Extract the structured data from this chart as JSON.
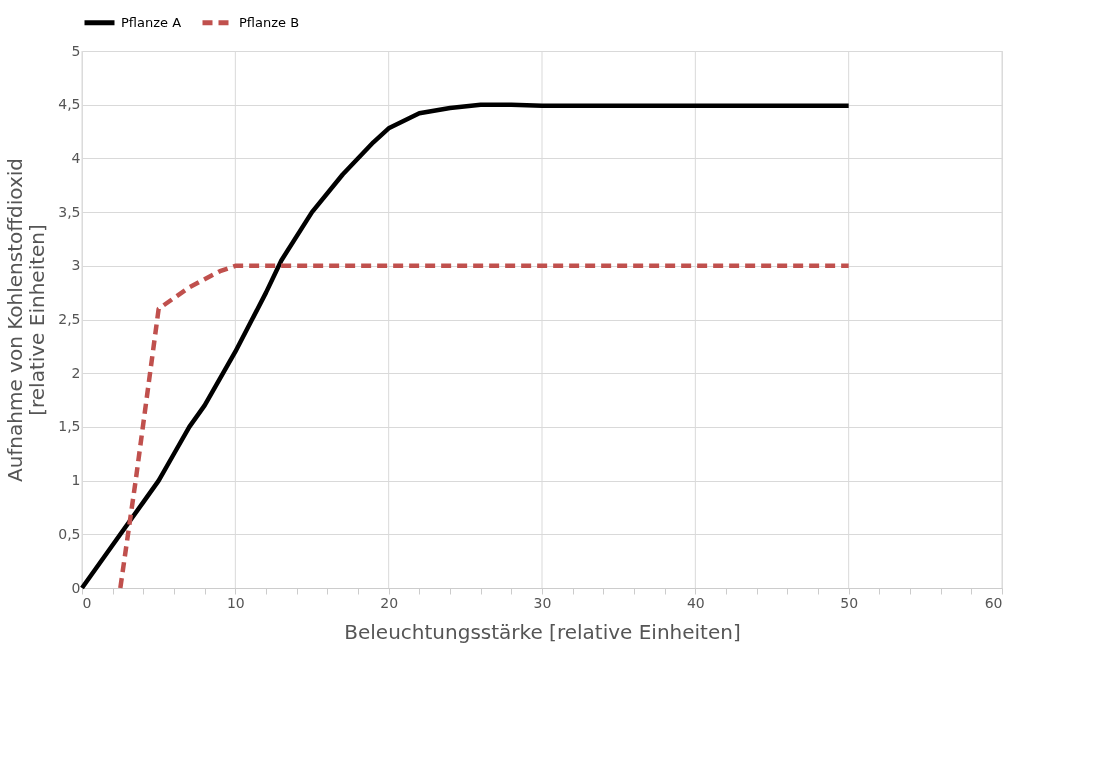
{
  "chart_data": {
    "type": "line",
    "xlabel": "Beleuchtungsstärke [relative Einheiten]",
    "ylabel": "Aufnahme von Kohlenstoffdioxid [relative Einheiten]",
    "xlim": [
      0,
      60
    ],
    "ylim": [
      0,
      5
    ],
    "xticks": [
      0,
      {
        "value": 2,
        "label": null
      },
      {
        "value": 4,
        "label": null
      },
      {
        "value": 6,
        "label": null
      },
      {
        "value": 8,
        "label": null
      },
      10,
      {
        "value": 12,
        "label": null
      },
      {
        "value": 14,
        "label": null
      },
      {
        "value": 16,
        "label": null
      },
      {
        "value": 18,
        "label": null
      },
      20,
      {
        "value": 22,
        "label": null
      },
      {
        "value": 24,
        "label": null
      },
      {
        "value": 26,
        "label": null
      },
      {
        "value": 28,
        "label": null
      },
      30,
      {
        "value": 32,
        "label": null
      },
      {
        "value": 34,
        "label": null
      },
      {
        "value": 36,
        "label": null
      },
      {
        "value": 38,
        "label": null
      },
      40,
      {
        "value": 42,
        "label": null
      },
      {
        "value": 44,
        "label": null
      },
      {
        "value": 46,
        "label": null
      },
      {
        "value": 48,
        "label": null
      },
      50,
      {
        "value": 52,
        "label": null
      },
      {
        "value": 54,
        "label": null
      },
      {
        "value": 56,
        "label": null
      },
      {
        "value": 58,
        "label": null
      },
      60
    ],
    "yticks": [
      0,
      {
        "value": 0.5,
        "label": "0,5"
      },
      1,
      {
        "value": 1.5,
        "label": "1,5"
      },
      2,
      {
        "value": 2.5,
        "label": "2,5"
      },
      3,
      {
        "value": 3.5,
        "label": "3,5"
      },
      4,
      {
        "value": 4.5,
        "label": "4,5"
      },
      5
    ],
    "grid": true,
    "legend": "top",
    "marker": "none",
    "series": [
      {
        "name": "Pflanze A",
        "color": "#000000",
        "line_style": "solid",
        "x": [
          0,
          2,
          4,
          5,
          6,
          7,
          8,
          10,
          12,
          13,
          15,
          17,
          19,
          20,
          22,
          24,
          26,
          28,
          30,
          50
        ],
        "values": [
          0,
          0.4,
          0.8,
          1.0,
          1.25,
          1.5,
          1.7,
          2.2,
          2.75,
          3.05,
          3.5,
          3.85,
          4.15,
          4.28,
          4.42,
          4.47,
          4.5,
          4.5,
          4.49,
          4.49
        ]
      },
      {
        "name": "Pflanze B",
        "color": "#c0504d",
        "line_style": "dashed",
        "x": [
          2.5,
          3.5,
          5,
          7,
          9,
          10,
          50
        ],
        "values": [
          0,
          1.0,
          2.6,
          2.8,
          2.95,
          3,
          3
        ]
      }
    ]
  }
}
